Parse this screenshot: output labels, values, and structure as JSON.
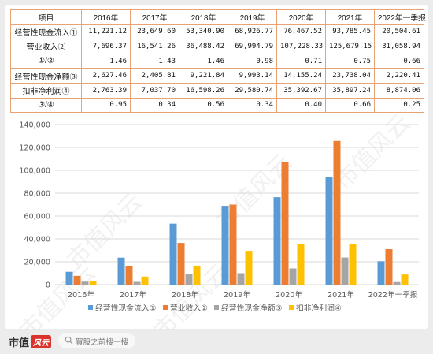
{
  "table": {
    "header": [
      "项目",
      "2016年",
      "2017年",
      "2018年",
      "2019年",
      "2020年",
      "2021年",
      "2022年一季报"
    ],
    "rows": [
      {
        "label": "经营性现金流入①",
        "cells": [
          "11,221.12",
          "23,649.60",
          "53,340.90",
          "68,926.77",
          "76,467.52",
          "93,785.45",
          "20,504.61"
        ]
      },
      {
        "label": "营业收入②",
        "cells": [
          "7,696.37",
          "16,541.26",
          "36,488.42",
          "69,994.79",
          "107,228.33",
          "125,679.15",
          "31,058.94"
        ]
      },
      {
        "label": "①/②",
        "cells": [
          "1.46",
          "1.43",
          "1.46",
          "0.98",
          "0.71",
          "0.75",
          "0.66"
        ]
      },
      {
        "label": "经营性现金净额③",
        "cells": [
          "2,627.46",
          "2,405.81",
          "9,221.84",
          "9,993.14",
          "14,155.24",
          "23,738.04",
          "2,220.41"
        ]
      },
      {
        "label": "扣非净利润④",
        "cells": [
          "2,763.39",
          "7,037.70",
          "16,598.26",
          "29,580.74",
          "35,392.67",
          "35,897.24",
          "8,874.06"
        ]
      },
      {
        "label": "③/④",
        "cells": [
          "0.95",
          "0.34",
          "0.56",
          "0.34",
          "0.40",
          "0.66",
          "0.25"
        ]
      }
    ]
  },
  "chart_data": {
    "type": "bar",
    "categories": [
      "2016年",
      "2017年",
      "2018年",
      "2019年",
      "2020年",
      "2021年",
      "2022年一季报"
    ],
    "series": [
      {
        "name": "经营性现金流入①",
        "color": "#5b9bd5",
        "values": [
          11221.12,
          23649.6,
          53340.9,
          68926.77,
          76467.52,
          93785.45,
          20504.61
        ]
      },
      {
        "name": "营业收入②",
        "color": "#ed7d31",
        "values": [
          7696.37,
          16541.26,
          36488.42,
          69994.79,
          107228.33,
          125679.15,
          31058.94
        ]
      },
      {
        "name": "经营性现金净额③",
        "color": "#a5a5a5",
        "values": [
          2627.46,
          2405.81,
          9221.84,
          9993.14,
          14155.24,
          23738.04,
          2220.41
        ]
      },
      {
        "name": "扣非净利润④",
        "color": "#ffc000",
        "values": [
          2763.39,
          7037.7,
          16598.26,
          29580.74,
          35392.67,
          35897.24,
          8874.06
        ]
      }
    ],
    "yticks": [
      "0",
      "20,000",
      "40,000",
      "60,000",
      "80,000",
      "100,000",
      "120,000",
      "140,000"
    ],
    "ylim": [
      0,
      140000
    ],
    "legend_position": "bottom",
    "grid": true
  },
  "watermark": "市值风云",
  "footer": {
    "logo": "市值",
    "logo_badge": "风云",
    "search_placeholder": "買股之前搜一搜",
    "icon": "search-icon"
  }
}
